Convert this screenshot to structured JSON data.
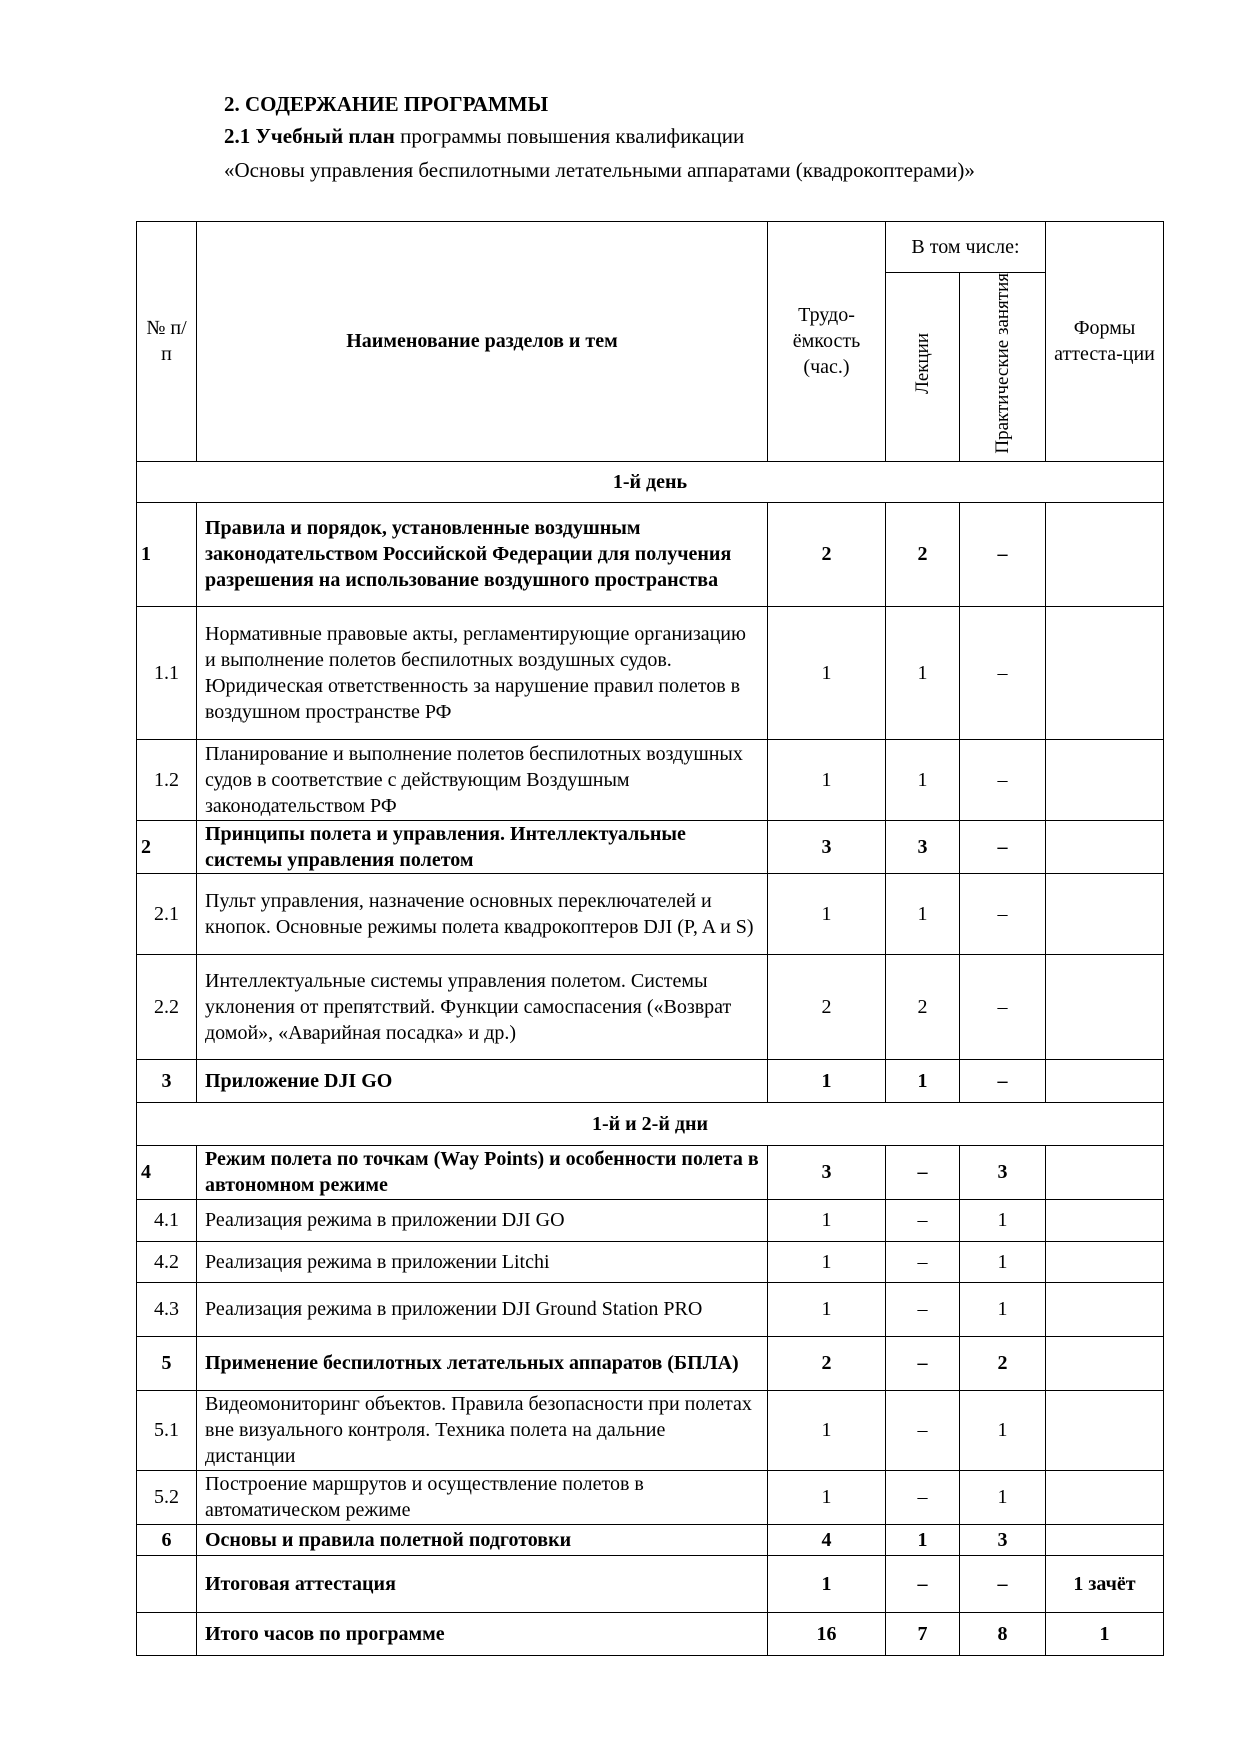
{
  "heading": {
    "section": "2. СОДЕРЖАНИЕ ПРОГРАММЫ",
    "sub_bold": "2.1 Учебный план",
    "sub_rest": " программы повышения квалификации",
    "program": "«Основы управления беспилотными летательными аппаратами (квадрокоптерами)»"
  },
  "table": {
    "header": {
      "num": "№ п/п",
      "name": "Наименование разделов и тем",
      "hours": "Трудо-ёмкость (час.)",
      "including": "В том числе:",
      "lectures": "Лекции",
      "practice": "Практические занятия",
      "forms": "Формы аттеста-ции"
    },
    "rows": [
      {
        "type": "day",
        "text": "1-й день"
      },
      {
        "num": "1",
        "name": "Правила и порядок, установленные воздушным законодательством Российской Федерации для получения разрешения на использование воздушного пространства",
        "hours": "2",
        "lec": "2",
        "prac": "–",
        "form": "",
        "bold": true
      },
      {
        "num": "1.1",
        "name": "Нормативные правовые акты, регламентирующие организацию и выполнение полетов беспилотных воздушных судов. Юридическая ответственность за нарушение правил полетов в воздушном пространстве РФ",
        "hours": "1",
        "lec": "1",
        "prac": "–",
        "form": ""
      },
      {
        "num": "1.2",
        "name": "Планирование и выполнение полетов беспилотных воздушных судов в соответствие с действующим Воздушным законодательством РФ",
        "hours": "1",
        "lec": "1",
        "prac": "–",
        "form": ""
      },
      {
        "num": "2",
        "name": "Принципы полета и управления. Интеллектуальные системы управления полетом",
        "hours": "3",
        "lec": "3",
        "prac": "–",
        "form": "",
        "bold": true
      },
      {
        "num": "2.1",
        "name": "Пульт управления, назначение основных переключателей и кнопок. Основные режимы полета квадрокоптеров DJI (P, A и S)",
        "hours": "1",
        "lec": "1",
        "prac": "–",
        "form": ""
      },
      {
        "num": "2.2",
        "name": "Интеллектуальные системы управления полетом. Системы уклонения от препятствий. Функции самоспасения («Возврат домой», «Аварийная посадка»  и др.)",
        "hours": "2",
        "lec": "2",
        "prac": "–",
        "form": ""
      },
      {
        "num": "3",
        "name": "Приложение DJI GO",
        "hours": "1",
        "lec": "1",
        "prac": "–",
        "form": "",
        "bold": true
      },
      {
        "type": "day",
        "text": "1-й и 2-й дни"
      },
      {
        "num": "4",
        "name": "Режим полета по точкам (Way Points) и особенности полета в автономном режиме",
        "hours": "3",
        "lec": "–",
        "prac": "3",
        "form": "",
        "bold": true
      },
      {
        "num": "4.1",
        "name": "Реализация режима в приложении DJI GO",
        "hours": "1",
        "lec": "–",
        "prac": "1",
        "form": ""
      },
      {
        "num": "4.2",
        "name": "Реализация режима в приложении Litchi",
        "hours": "1",
        "lec": "–",
        "prac": "1",
        "form": ""
      },
      {
        "num": "4.3",
        "name": "Реализация режима в приложении DJI Ground Station PRO",
        "hours": "1",
        "lec": "–",
        "prac": "1",
        "form": ""
      },
      {
        "num": "5",
        "name": "Применение беспилотных летательных аппаратов (БПЛА)",
        "hours": "2",
        "lec": "–",
        "prac": "2",
        "form": "",
        "bold": true
      },
      {
        "num": "5.1",
        "name": "Видеомониторинг объектов. Правила безопасности при полетах вне визуального контроля. Техника полета на дальние дистанции",
        "hours": "1",
        "lec": "–",
        "prac": "1",
        "form": ""
      },
      {
        "num": "5.2",
        "name": "Построение маршрутов и осуществление полетов в автоматическом режиме",
        "hours": "1",
        "lec": "–",
        "prac": "1",
        "form": ""
      },
      {
        "num": "6",
        "name": "Основы и правила полетной подготовки",
        "hours": "4",
        "lec": "1",
        "prac": "3",
        "form": "",
        "bold": true
      },
      {
        "num": "",
        "name": "Итоговая аттестация",
        "hours": "1",
        "lec": "–",
        "prac": "–",
        "form": "1 зачёт",
        "bold": true
      },
      {
        "num": "",
        "name": "Итого часов по программе",
        "hours": "16",
        "lec": "7",
        "prac": "8",
        "form": "1",
        "bold": true
      }
    ]
  }
}
